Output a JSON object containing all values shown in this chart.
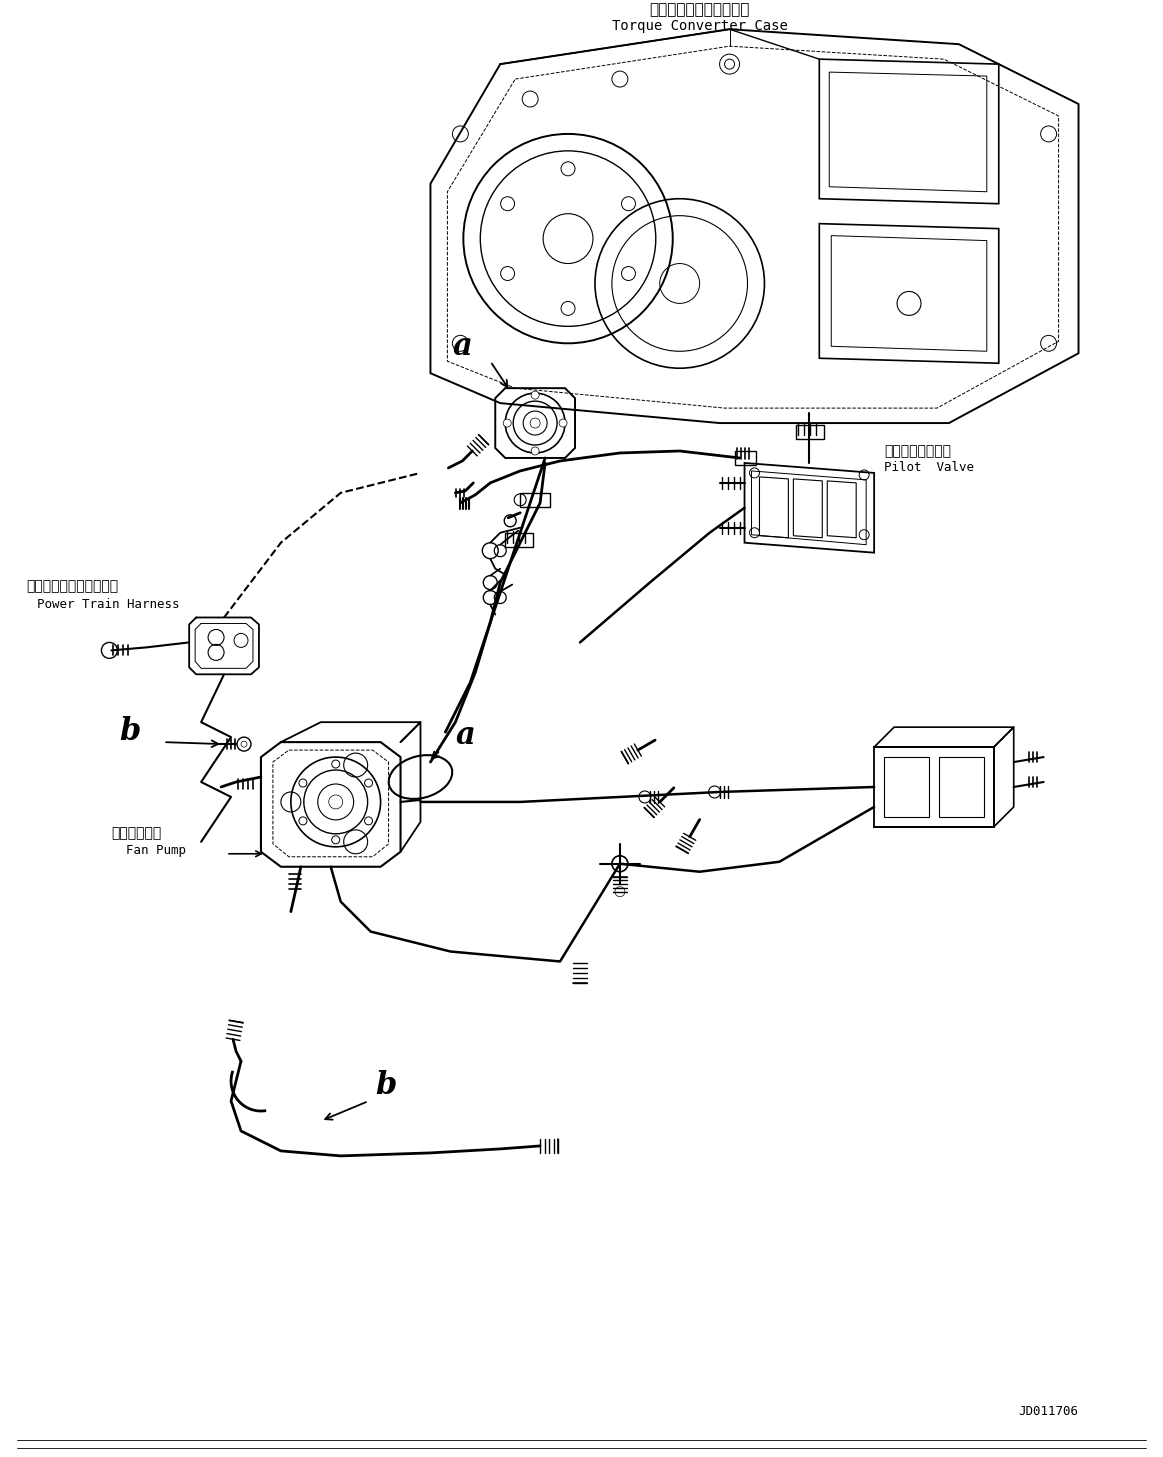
{
  "bg_color": "#ffffff",
  "line_color": "#000000",
  "fig_width": 11.63,
  "fig_height": 14.57,
  "diagram_id": "JD011706",
  "labels": {
    "torque_converter_jp": "トルクコンバータケース",
    "torque_converter_en": "Torque Converter Case",
    "pilot_valve_jp": "パイロットバルブ",
    "pilot_valve_en": "Pilot  Valve",
    "power_train_jp": "パワートレインハーネス",
    "power_train_en": "Power Train Harness",
    "fan_pump_jp": "ファンポンプ",
    "fan_pump_en": "Fan Pump",
    "label_a": "a",
    "label_b": "b"
  }
}
